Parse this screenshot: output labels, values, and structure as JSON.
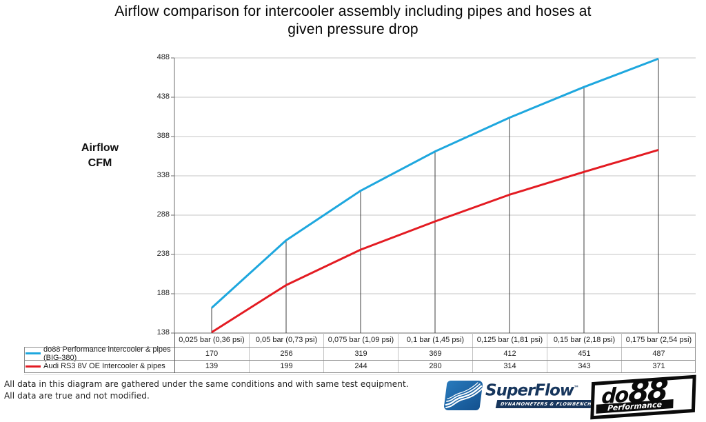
{
  "title_line1": "Airflow comparison for intercooler assembly including pipes and hoses at",
  "title_line2": "given pressure drop",
  "y_axis_title_line1": "Airflow",
  "y_axis_title_line2": "CFM",
  "chart_data": {
    "type": "line",
    "title": "Airflow comparison for intercooler assembly including pipes and hoses at given pressure drop",
    "xlabel": "",
    "ylabel": "Airflow CFM",
    "categories": [
      "0,025 bar (0,36 psi)",
      "0,05 bar (0,73 psi)",
      "0,075 bar (1,09 psi)",
      "0,1 bar (1,45 psi)",
      "0,125 bar (1,81 psi)",
      "0,15 bar (2,18 psi)",
      "0,175 bar (2,54 psi)"
    ],
    "series": [
      {
        "name": "do88 Performance intercooler & pipes (BIG-380)",
        "color": "#1ea7de",
        "values": [
          170,
          256,
          319,
          369,
          412,
          451,
          487
        ]
      },
      {
        "name": "Audi RS3 8V OE Intercooler & pipes",
        "color": "#e31b22",
        "values": [
          139,
          199,
          244,
          280,
          314,
          343,
          371
        ]
      }
    ],
    "yticks": [
      488,
      438,
      388,
      338,
      288,
      238,
      188,
      138
    ],
    "ylim": [
      138,
      488
    ],
    "grid": "horizontal gridlines at each y tick",
    "drop_lines": "vertical line from category axis up to first series value at every category",
    "legend_position": "table below chart with per-category values"
  },
  "footer": {
    "line1": "All data in this diagram are gathered under the same conditions and with same test equipment.",
    "line2": "All data are true and not modified."
  },
  "logos": {
    "superflow": {
      "brand": "SuperFlow",
      "trademark": "™",
      "tagline": "DYNAMOMETERS & FLOWBENCHES"
    },
    "do88": {
      "brand_do": "do",
      "brand_88": "88",
      "sub": "Performance"
    }
  },
  "colors": {
    "series1": "#1ea7de",
    "series2": "#e31b22",
    "gridline": "#c6c6c6",
    "axis": "#6e6e6e",
    "drop_line": "#3c3c3c",
    "table_border": "#8c8c8c",
    "table_inner_border": "#c3c3c3",
    "superflow_navy": "#17365d"
  }
}
